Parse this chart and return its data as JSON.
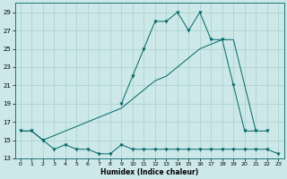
{
  "xlabel": "Humidex (Indice chaleur)",
  "background_color": "#cce8e8",
  "grid_color": "#aacfcf",
  "line_color": "#006666",
  "xlim": [
    -0.5,
    23.5
  ],
  "ylim": [
    13,
    30
  ],
  "yticks": [
    13,
    15,
    17,
    19,
    21,
    23,
    25,
    27,
    29
  ],
  "xticks": [
    0,
    1,
    2,
    3,
    4,
    5,
    6,
    7,
    8,
    9,
    10,
    11,
    12,
    13,
    14,
    15,
    16,
    17,
    18,
    19,
    20,
    21,
    22,
    23
  ],
  "series1_x": [
    0,
    1,
    2,
    3,
    4,
    5,
    6,
    7,
    8,
    9,
    10,
    11,
    12,
    13,
    14,
    15,
    16,
    17,
    18,
    19,
    20,
    21,
    22
  ],
  "series1_y": [
    16,
    16,
    15,
    null,
    null,
    null,
    null,
    null,
    null,
    19,
    22,
    25,
    28,
    28,
    29,
    27,
    29,
    26,
    26,
    21,
    16,
    16,
    16
  ],
  "series2_x": [
    0,
    1,
    2,
    3,
    4,
    5,
    6,
    7,
    8,
    9,
    10,
    11,
    12,
    13,
    14,
    15,
    16,
    17,
    18,
    19,
    20,
    21,
    22,
    23
  ],
  "series2_y": [
    16,
    16,
    15,
    15.5,
    16,
    16.5,
    17,
    17.5,
    18,
    18.5,
    19.5,
    20.5,
    21.5,
    22,
    23,
    24,
    25,
    25.5,
    26,
    26,
    21,
    16,
    null,
    null
  ],
  "series3_x": [
    0,
    1,
    2,
    3,
    4,
    5,
    6,
    7,
    8,
    9,
    10,
    11,
    12,
    13,
    14,
    15,
    16,
    17,
    18,
    19,
    20,
    21,
    22,
    23
  ],
  "series3_y": [
    null,
    null,
    15,
    14,
    14.5,
    14,
    14,
    13.5,
    13.5,
    14.5,
    14,
    14,
    14,
    14,
    14,
    14,
    14,
    14,
    14,
    14,
    14,
    14,
    14,
    13.5
  ]
}
